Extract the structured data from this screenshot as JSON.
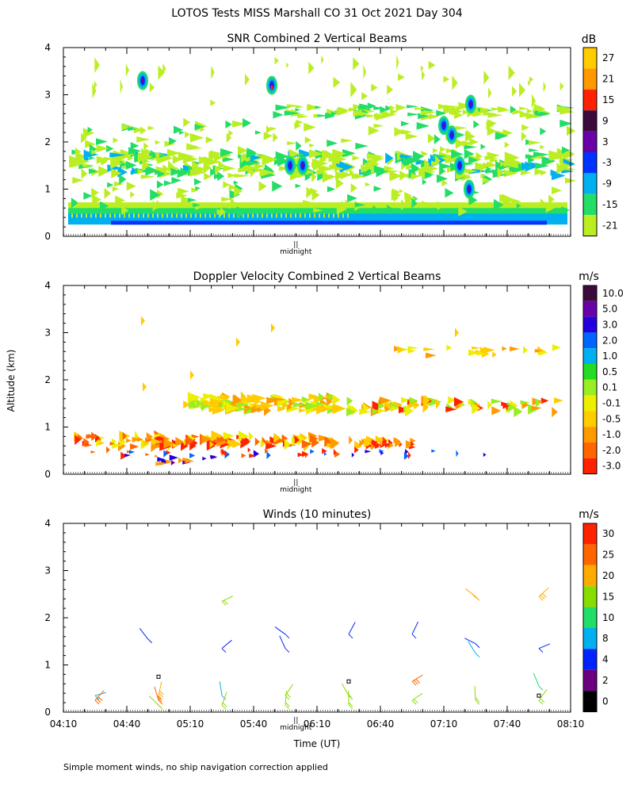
{
  "figure": {
    "title": "LOTOS Tests MISS Marshall CO  31 Oct 2021 Day 304",
    "ylabel": "Altitude (km)",
    "xlabel": "Time (UT)",
    "footnote": "Simple moment winds, no ship navigation correction applied",
    "midnight_label": "midnight",
    "midnight_marker": "||"
  },
  "chart_data": [
    {
      "type": "heatmap",
      "title": "SNR Combined 2 Vertical Beams",
      "ylim": [
        0,
        4
      ],
      "yticks": [
        "0",
        "1",
        "2",
        "3",
        "4"
      ],
      "xlim_minutes_utc": [
        250,
        490
      ],
      "colorbar": {
        "unit": "dB",
        "labels": [
          "27",
          "21",
          "15",
          "9",
          "3",
          "-3",
          "-9",
          "-15",
          "-21"
        ],
        "colors": [
          "#ffcc00",
          "#ff9900",
          "#ff2200",
          "#3d0a3d",
          "#6a00a8",
          "#0033ff",
          "#00b0f0",
          "#22dd66",
          "#bbee22"
        ]
      },
      "layers": [
        {
          "name": "ground clutter",
          "y_range_km": [
            0.25,
            0.7
          ],
          "snr_db": "-21 to -3"
        },
        {
          "name": "layer ~1.5 km",
          "y_range_km": [
            1.3,
            1.7
          ],
          "snr_db": "-21 to 3"
        },
        {
          "name": "layer ~2.6 km",
          "y_range_km": [
            2.5,
            2.8
          ],
          "snr_db": "-21 to -15"
        }
      ]
    },
    {
      "type": "heatmap",
      "title": "Doppler Velocity Combined 2 Vertical Beams",
      "ylim": [
        0,
        4
      ],
      "yticks": [
        "0",
        "1",
        "2",
        "3",
        "4"
      ],
      "colorbar": {
        "unit": "m/s",
        "labels": [
          "10.0",
          "5.0",
          "3.0",
          "2.0",
          "1.0",
          "0.5",
          "0.1",
          "-0.1",
          "-0.5",
          "-1.0",
          "-2.0",
          "-3.0"
        ],
        "colors": [
          "#3d0a3d",
          "#6a00a8",
          "#2200dd",
          "#0066ff",
          "#00b0f0",
          "#22dd22",
          "#99ee22",
          "#eeee00",
          "#ffcc00",
          "#ff9900",
          "#ff6600",
          "#ff2200"
        ]
      }
    },
    {
      "type": "scatter",
      "title": "Winds (10 minutes)",
      "ylim": [
        0,
        4
      ],
      "yticks": [
        "0",
        "1",
        "2",
        "3",
        "4"
      ],
      "x_ticklabels": [
        "04:10",
        "04:40",
        "05:10",
        "05:40",
        "06:10",
        "06:40",
        "07:10",
        "07:40",
        "08:10"
      ],
      "colorbar": {
        "unit": "m/s",
        "labels": [
          "30",
          "25",
          "20",
          "15",
          "10",
          "8",
          "4",
          "2",
          "0"
        ],
        "colors": [
          "#ff2200",
          "#ff6600",
          "#ffaa00",
          "#88dd00",
          "#22dd66",
          "#00b0f0",
          "#0022ff",
          "#6a0080",
          "#000000"
        ]
      },
      "barbs": [
        {
          "time": "04:25",
          "alt_km": 0.35,
          "speed": 8
        },
        {
          "time": "04:25",
          "alt_km": 0.25,
          "speed": 25
        },
        {
          "time": "04:55",
          "alt_km": 0.35,
          "speed": 20
        },
        {
          "time": "04:55",
          "alt_km": 0.25,
          "speed": 25
        },
        {
          "time": "04:55",
          "alt_km": 0.15,
          "speed": 15
        },
        {
          "time": "04:55",
          "alt_km": 0.75,
          "speed": 0
        },
        {
          "time": "04:50",
          "alt_km": 1.55,
          "speed": 4
        },
        {
          "time": "05:25",
          "alt_km": 0.35,
          "speed": 8
        },
        {
          "time": "05:25",
          "alt_km": 0.15,
          "speed": 15
        },
        {
          "time": "05:25",
          "alt_km": 1.35,
          "speed": 4
        },
        {
          "time": "05:25",
          "alt_km": 2.35,
          "speed": 15
        },
        {
          "time": "05:55",
          "alt_km": 0.35,
          "speed": 15
        },
        {
          "time": "05:55",
          "alt_km": 0.15,
          "speed": 15
        },
        {
          "time": "05:55",
          "alt_km": 1.35,
          "speed": 4
        },
        {
          "time": "05:55",
          "alt_km": 1.65,
          "speed": 4
        },
        {
          "time": "06:25",
          "alt_km": 0.65,
          "speed": 0
        },
        {
          "time": "06:25",
          "alt_km": 0.35,
          "speed": 15
        },
        {
          "time": "06:25",
          "alt_km": 0.15,
          "speed": 15
        },
        {
          "time": "06:25",
          "alt_km": 1.65,
          "speed": 4
        },
        {
          "time": "06:55",
          "alt_km": 0.65,
          "speed": 25
        },
        {
          "time": "06:55",
          "alt_km": 0.25,
          "speed": 15
        },
        {
          "time": "06:55",
          "alt_km": 1.65,
          "speed": 4
        },
        {
          "time": "07:25",
          "alt_km": 0.25,
          "speed": 15
        },
        {
          "time": "07:25",
          "alt_km": 1.25,
          "speed": 8
        },
        {
          "time": "07:25",
          "alt_km": 1.45,
          "speed": 4
        },
        {
          "time": "07:25",
          "alt_km": 2.45,
          "speed": 20
        },
        {
          "time": "07:55",
          "alt_km": 0.55,
          "speed": 10
        },
        {
          "time": "07:55",
          "alt_km": 0.35,
          "speed": 0
        },
        {
          "time": "07:55",
          "alt_km": 0.25,
          "speed": 15
        },
        {
          "time": "07:55",
          "alt_km": 1.35,
          "speed": 4
        },
        {
          "time": "07:55",
          "alt_km": 2.45,
          "speed": 20
        }
      ]
    }
  ]
}
